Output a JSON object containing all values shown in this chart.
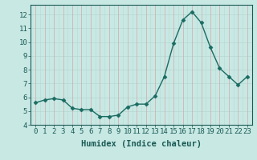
{
  "x": [
    0,
    1,
    2,
    3,
    4,
    5,
    6,
    7,
    8,
    9,
    10,
    11,
    12,
    13,
    14,
    15,
    16,
    17,
    18,
    19,
    20,
    21,
    22,
    23
  ],
  "y": [
    5.6,
    5.8,
    5.9,
    5.8,
    5.2,
    5.1,
    5.1,
    4.6,
    4.6,
    4.7,
    5.3,
    5.5,
    5.5,
    6.1,
    7.5,
    9.9,
    11.6,
    12.2,
    11.4,
    9.6,
    8.1,
    7.5,
    6.9,
    7.5
  ],
  "line_color": "#1a6b61",
  "marker": "D",
  "markersize": 2.5,
  "linewidth": 1.0,
  "bg_color": "#c8e8e4",
  "grid_color_horiz": "#b8d8d4",
  "grid_color_vert_pink": "#d4a8a8",
  "grid_color_vert_teal": "#b8d8d4",
  "xlabel": "Humidex (Indice chaleur)",
  "xlim": [
    -0.5,
    23.5
  ],
  "ylim": [
    4,
    12.7
  ],
  "yticks": [
    4,
    5,
    6,
    7,
    8,
    9,
    10,
    11,
    12
  ],
  "xticks": [
    0,
    1,
    2,
    3,
    4,
    5,
    6,
    7,
    8,
    9,
    10,
    11,
    12,
    13,
    14,
    15,
    16,
    17,
    18,
    19,
    20,
    21,
    22,
    23
  ],
  "xlabel_fontsize": 7.5,
  "tick_fontsize": 6.5,
  "tick_color": "#1a5a54",
  "axis_color": "#1a5a54"
}
